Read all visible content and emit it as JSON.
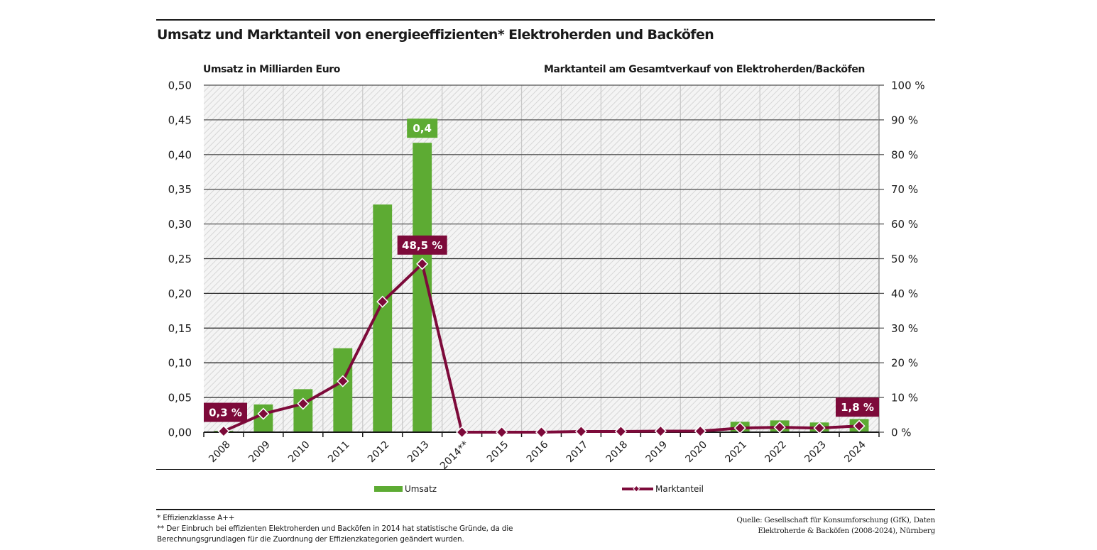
{
  "title": "Umsatz und Marktanteil von energieeffizienten* Elektroherden und Backöfen",
  "colors": {
    "bar": "#5dab33",
    "line": "#7d0a3a",
    "grid_major": "#555555",
    "grid_minor": "#c8c8c8",
    "hatch_bg": "#f3f3f3",
    "hatch_line": "#d2d2d2"
  },
  "chart_data": {
    "type": "bar+line",
    "title": "Umsatz und Marktanteil von energieeffizienten* Elektroherden und Backöfen",
    "ylabel_left": "Umsatz in Milliarden Euro",
    "ylabel_right": "Marktanteil am Gesamtverkauf von Elektroherden/Backöfen",
    "categories": [
      "2008",
      "2009",
      "2010",
      "2011",
      "2012",
      "2013",
      "2014**",
      "2015",
      "2016",
      "2017",
      "2018",
      "2019",
      "2020",
      "2021",
      "2022",
      "2023",
      "2024"
    ],
    "y_left_range": [
      0,
      0.5
    ],
    "y_left_ticks": [
      "0,00",
      "0,05",
      "0,10",
      "0,15",
      "0,20",
      "0,25",
      "0,30",
      "0,35",
      "0,40",
      "0,45",
      "0,50"
    ],
    "y_right_range": [
      0,
      100
    ],
    "y_right_ticks": [
      "0 %",
      "10 %",
      "20 %",
      "30 %",
      "40 %",
      "50 %",
      "60 %",
      "70 %",
      "80 %",
      "90 %",
      "100 %"
    ],
    "grid": true,
    "series": [
      {
        "name": "Umsatz",
        "type": "bar",
        "axis": "left",
        "values": [
          0.002,
          0.04,
          0.062,
          0.121,
          0.328,
          0.417,
          0,
          0,
          0,
          0,
          0,
          0,
          0,
          0.015,
          0.017,
          0.014,
          0.019
        ]
      },
      {
        "name": "Marktanteil",
        "type": "line",
        "axis": "right",
        "values": [
          0.3,
          5.3,
          8.2,
          14.7,
          37.6,
          48.5,
          0.0,
          0.0,
          0.0,
          0.2,
          0.2,
          0.3,
          0.3,
          1.2,
          1.4,
          1.2,
          1.8
        ]
      }
    ],
    "annotations": [
      {
        "series": "Umsatz",
        "category": "2013",
        "text": "0,4"
      },
      {
        "series": "Marktanteil",
        "category": "2008",
        "text": "0,3 %"
      },
      {
        "series": "Marktanteil",
        "category": "2013",
        "text": "48,5 %"
      },
      {
        "series": "Marktanteil",
        "category": "2024",
        "text": "1,8 %"
      }
    ],
    "legend": {
      "placement": "bottom",
      "entries": [
        "Umsatz",
        "Marktanteil"
      ]
    }
  },
  "footnotes": [
    "* Effizienzklasse A++",
    "** Der Einbruch bei effizienten Elektroherden und Backöfen in 2014 hat statistische Gründe, da die",
    "Berechnungsgrundlagen für die Zuordnung der Effizienzkategorien geändert wurden."
  ],
  "source": [
    "Quelle: Gesellschaft für Konsumforschung (GfK), Daten",
    "Elektroherde & Backöfen (2008-2024), Nürnberg"
  ]
}
